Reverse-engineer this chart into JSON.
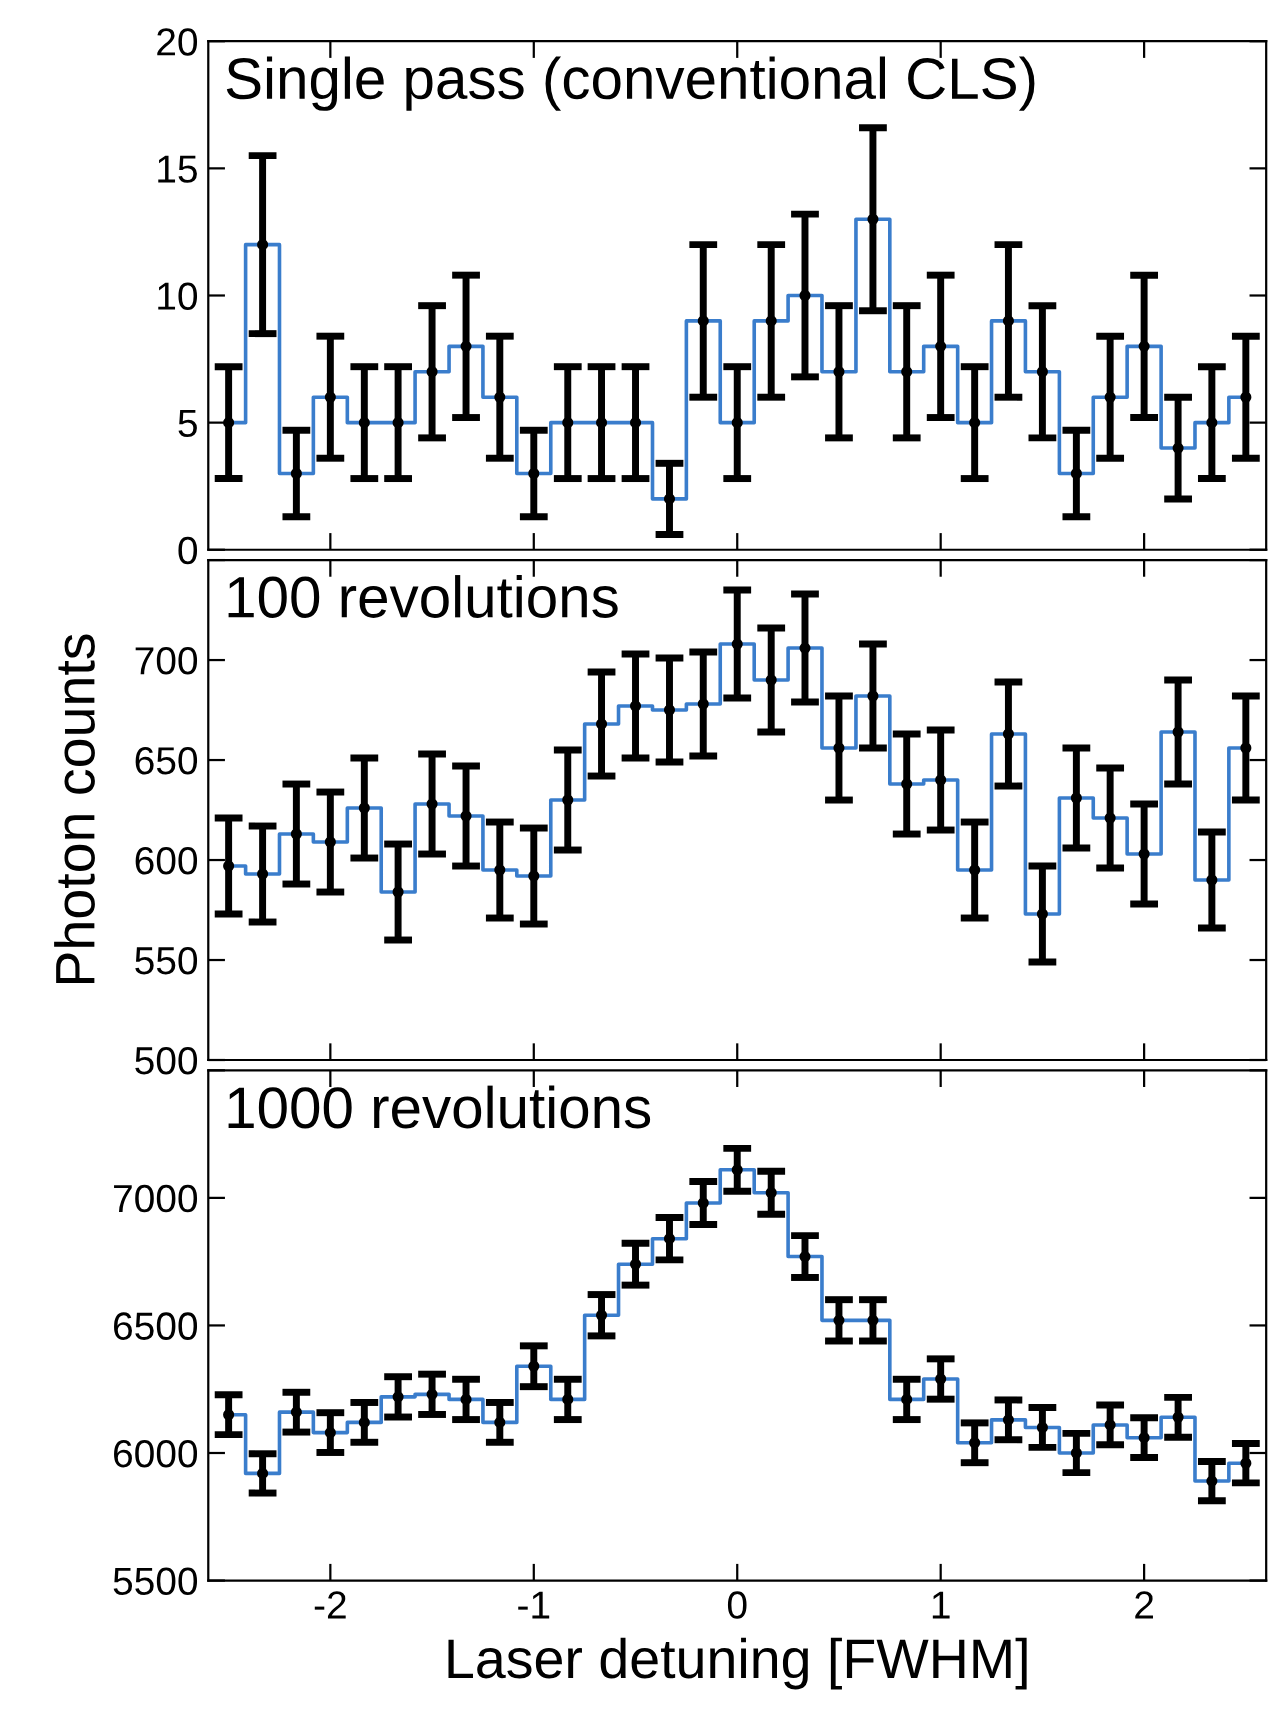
{
  "chart_data": [
    {
      "type": "step",
      "annotations": [
        "Single pass (conventional CLS)"
      ],
      "x": [
        -2.5,
        -2.333,
        -2.167,
        -2.0,
        -1.833,
        -1.667,
        -1.5,
        -1.333,
        -1.167,
        -1.0,
        -0.833,
        -0.667,
        -0.5,
        -0.333,
        -0.167,
        0.0,
        0.167,
        0.333,
        0.5,
        0.667,
        0.833,
        1.0,
        1.167,
        1.333,
        1.5,
        1.667,
        1.833,
        2.0,
        2.167,
        2.333,
        2.5
      ],
      "series": [
        {
          "color": "#3a7dcc",
          "values": [
            5,
            12,
            3,
            6,
            5,
            5,
            7,
            8,
            6,
            3,
            5,
            5,
            5,
            2,
            9,
            5,
            9,
            10,
            7,
            13,
            7,
            8,
            5,
            9,
            7,
            3,
            6,
            8,
            4,
            5,
            6
          ],
          "errors": [
            2.2,
            3.5,
            1.7,
            2.4,
            2.2,
            2.2,
            2.6,
            2.8,
            2.4,
            1.7,
            2.2,
            2.2,
            2.2,
            1.4,
            3.0,
            2.2,
            3.0,
            3.2,
            2.6,
            3.6,
            2.6,
            2.8,
            2.2,
            3.0,
            2.6,
            1.7,
            2.4,
            2.8,
            2.0,
            2.2,
            2.4
          ]
        }
      ],
      "xlim": [
        -2.6,
        2.6
      ],
      "xticks": [
        -2,
        -1,
        0,
        1,
        2
      ],
      "ylim": [
        0,
        20
      ],
      "yticks": [
        0,
        5,
        10,
        15,
        20
      ],
      "tick_labels": "y",
      "marker": "circle",
      "line_style": "solid",
      "grid": false,
      "legend": false
    },
    {
      "type": "step",
      "annotations": [
        "100 revolutions"
      ],
      "ylabel": "Photon counts",
      "x": [
        -2.5,
        -2.333,
        -2.167,
        -2.0,
        -1.833,
        -1.667,
        -1.5,
        -1.333,
        -1.167,
        -1.0,
        -0.833,
        -0.667,
        -0.5,
        -0.333,
        -0.167,
        0.0,
        0.167,
        0.333,
        0.5,
        0.667,
        0.833,
        1.0,
        1.167,
        1.333,
        1.5,
        1.667,
        1.833,
        2.0,
        2.167,
        2.333,
        2.5
      ],
      "series": [
        {
          "color": "#3a7dcc",
          "values": [
            597,
            593,
            613,
            609,
            626,
            584,
            628,
            622,
            595,
            592,
            630,
            668,
            677,
            675,
            678,
            708,
            690,
            706,
            656,
            682,
            638,
            640,
            595,
            663,
            573,
            631,
            621,
            603,
            664,
            590,
            656
          ],
          "errors": [
            24,
            24,
            25,
            25,
            25,
            24,
            25,
            25,
            24,
            24,
            25,
            26,
            26,
            26,
            26,
            27,
            26,
            27,
            26,
            26,
            25,
            25,
            24,
            26,
            24,
            25,
            25,
            25,
            26,
            24,
            26
          ]
        }
      ],
      "xlim": [
        -2.6,
        2.6
      ],
      "xticks": [
        -2,
        -1,
        0,
        1,
        2
      ],
      "ylim": [
        500,
        750
      ],
      "yticks": [
        500,
        550,
        600,
        650,
        700,
        {
          "value": 750,
          "label": null
        }
      ],
      "tick_labels": "y",
      "marker": "circle",
      "line_style": "solid",
      "grid": false,
      "legend": false
    },
    {
      "type": "step",
      "annotations": [
        "1000 revolutions"
      ],
      "xlabel": "Laser detuning [FWHM]",
      "x": [
        -2.5,
        -2.333,
        -2.167,
        -2.0,
        -1.833,
        -1.667,
        -1.5,
        -1.333,
        -1.167,
        -1.0,
        -0.833,
        -0.667,
        -0.5,
        -0.333,
        -0.167,
        0.0,
        0.167,
        0.333,
        0.5,
        0.667,
        0.833,
        1.0,
        1.167,
        1.333,
        1.5,
        1.667,
        1.833,
        2.0,
        2.167,
        2.333,
        2.5
      ],
      "series": [
        {
          "color": "#3a7dcc",
          "values": [
            6150,
            5920,
            6160,
            6080,
            6120,
            6220,
            6230,
            6210,
            6120,
            6340,
            6210,
            6540,
            6740,
            6840,
            6980,
            7110,
            7020,
            6770,
            6520,
            6520,
            6210,
            6290,
            6040,
            6130,
            6100,
            6000,
            6110,
            6060,
            6140,
            5890,
            5960
          ],
          "errors": [
            78,
            77,
            78,
            78,
            78,
            79,
            79,
            79,
            78,
            80,
            79,
            81,
            82,
            83,
            84,
            84,
            84,
            82,
            81,
            81,
            79,
            79,
            78,
            78,
            78,
            77,
            78,
            78,
            78,
            77,
            77
          ]
        }
      ],
      "xlim": [
        -2.6,
        2.6
      ],
      "xticks": [
        -2,
        -1,
        0,
        1,
        2
      ],
      "ylim": [
        5500,
        7500
      ],
      "yticks": [
        5500,
        6000,
        6500,
        7000,
        {
          "value": 7500,
          "label": null
        }
      ],
      "marker": "circle",
      "line_style": "solid",
      "grid": false,
      "legend": false
    }
  ]
}
